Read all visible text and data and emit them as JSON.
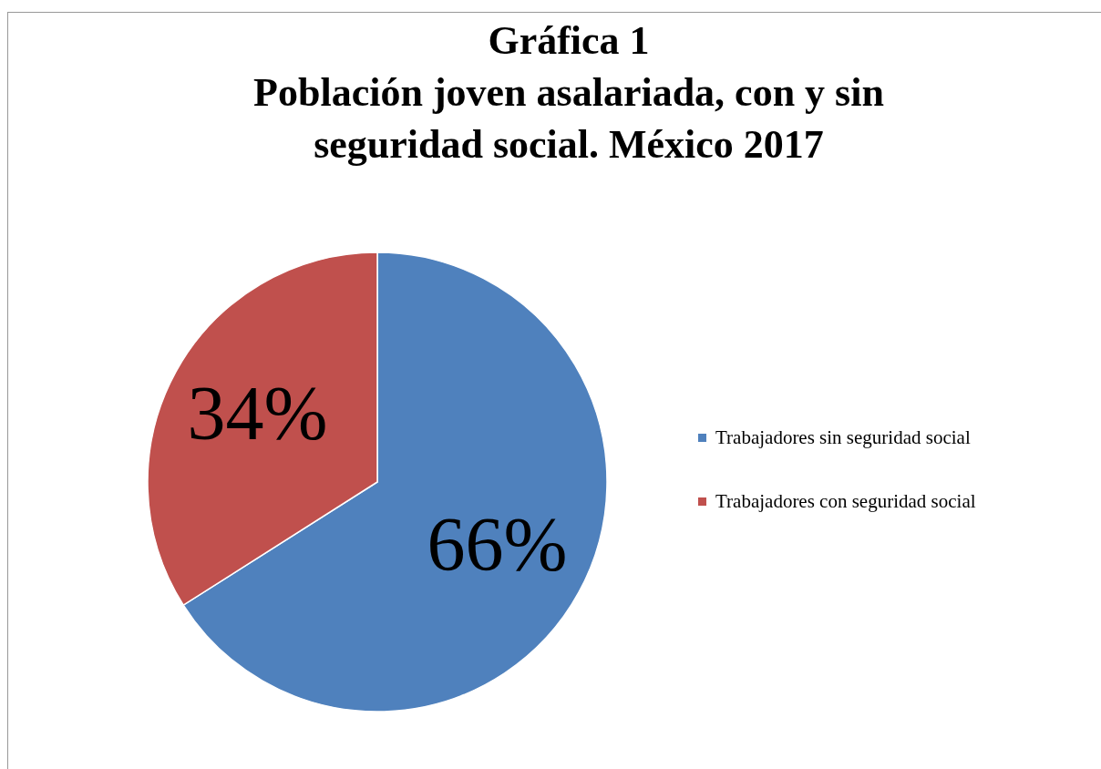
{
  "chart_data": {
    "type": "pie",
    "title": "Gráfica 1",
    "subtitle": "Población joven asalariada, con y sin seguridad social. México 2017",
    "categories": [
      "Trabajadores sin seguridad social",
      "Trabajadores con seguridad social"
    ],
    "values": [
      66,
      34
    ],
    "colors": [
      "#4f81bd",
      "#c0504d"
    ],
    "value_labels": [
      "66%",
      "34%"
    ],
    "legend": "right"
  }
}
